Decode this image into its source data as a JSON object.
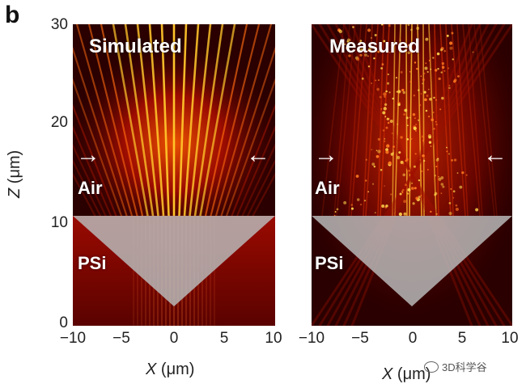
{
  "panel_letter": "b",
  "y_axis": {
    "label_var": "Z",
    "label_unit": "(μm)",
    "ticks": [
      "30",
      "20",
      "10",
      "0"
    ]
  },
  "x_axis": {
    "label_var": "X",
    "label_unit": "(μm)",
    "ticks": [
      "−10",
      "−5",
      "0",
      "5",
      "10"
    ]
  },
  "panels": [
    {
      "title": "Simulated",
      "upper_medium": "Air",
      "lower_medium": "PSi"
    },
    {
      "title": "Measured",
      "upper_medium": "Air",
      "lower_medium": "PSi"
    }
  ],
  "arrows": {
    "left": "→",
    "right": "←"
  },
  "watermark": "3D科学谷",
  "colors": {
    "field_dark": "#2a0000",
    "field_mid": "#b80f00",
    "field_bright": "#ffd23a",
    "prism": "#b8b8b8"
  },
  "icons": [
    "wechat-icon"
  ]
}
